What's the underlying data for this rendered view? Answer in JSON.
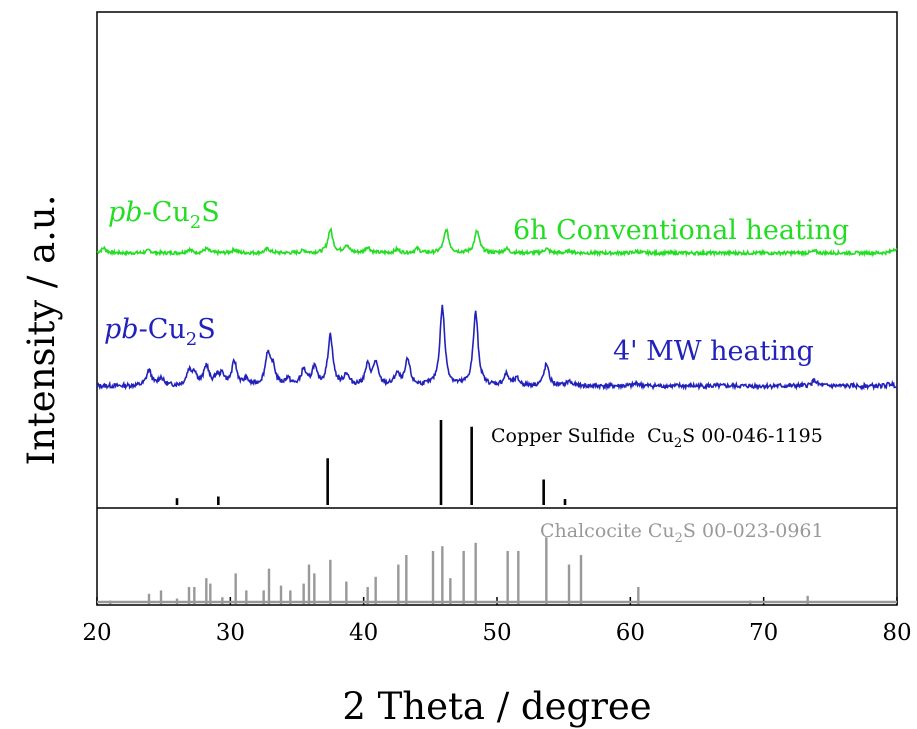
{
  "chart_data": {
    "type": "line",
    "xlabel": "2 Theta / degree",
    "ylabel": "Intensity / a.u.",
    "xlim": [
      20,
      80
    ],
    "xticks": [
      20,
      30,
      40,
      50,
      60,
      70,
      80
    ],
    "xtick_labels": [
      "20",
      "30",
      "40",
      "50",
      "60",
      "70",
      "80"
    ],
    "grid": false,
    "series": [
      {
        "name": "6h Conventional heating",
        "sample_prefix": "pb",
        "sample_formula": "-Cu",
        "sample_subscript": "2",
        "sample_suffix": "S",
        "color": "#22dd22",
        "baseline": 0.0,
        "peaks": [
          [
            20.5,
            0.12
          ],
          [
            23.9,
            0.06
          ],
          [
            26.9,
            0.08
          ],
          [
            28.2,
            0.1
          ],
          [
            30.3,
            0.08
          ],
          [
            32.8,
            0.1
          ],
          [
            35.5,
            0.06
          ],
          [
            37.5,
            0.55
          ],
          [
            38.7,
            0.18
          ],
          [
            40.3,
            0.14
          ],
          [
            42.5,
            0.08
          ],
          [
            44.0,
            0.1
          ],
          [
            46.2,
            0.55
          ],
          [
            48.5,
            0.52
          ],
          [
            50.7,
            0.1
          ],
          [
            53.7,
            0.1
          ],
          [
            55.5,
            0.05
          ],
          [
            60.5,
            0.04
          ],
          [
            73.8,
            0.04
          ],
          [
            79.8,
            0.1
          ]
        ]
      },
      {
        "name": "4' MW heating",
        "sample_prefix": "pb",
        "sample_formula": "-Cu",
        "sample_subscript": "2",
        "sample_suffix": "S",
        "color": "#2222bb",
        "baseline": 0.0,
        "peaks": [
          [
            23.9,
            0.28
          ],
          [
            24.8,
            0.14
          ],
          [
            26.9,
            0.25
          ],
          [
            27.3,
            0.22
          ],
          [
            28.2,
            0.35
          ],
          [
            29.0,
            0.15
          ],
          [
            29.4,
            0.18
          ],
          [
            30.3,
            0.42
          ],
          [
            31.2,
            0.1
          ],
          [
            32.8,
            0.55
          ],
          [
            33.2,
            0.3
          ],
          [
            34.3,
            0.12
          ],
          [
            35.5,
            0.28
          ],
          [
            36.3,
            0.32
          ],
          [
            37.5,
            0.9
          ],
          [
            38.7,
            0.2
          ],
          [
            40.3,
            0.35
          ],
          [
            40.9,
            0.4
          ],
          [
            42.5,
            0.2
          ],
          [
            43.3,
            0.45
          ],
          [
            45.9,
            1.4
          ],
          [
            48.4,
            1.3
          ],
          [
            50.7,
            0.2
          ],
          [
            51.5,
            0.12
          ],
          [
            53.7,
            0.38
          ],
          [
            55.4,
            0.08
          ],
          [
            60.5,
            0.05
          ],
          [
            73.8,
            0.1
          ],
          [
            79.5,
            0.04
          ]
        ]
      }
    ],
    "references": [
      {
        "label_name": "Copper Sulfide",
        "label_formula": "Cu",
        "label_subscript": "2",
        "label_suffix": "S 00-046-1195",
        "color": "#000000",
        "sticks": [
          [
            26.0,
            0.08
          ],
          [
            29.1,
            0.1
          ],
          [
            37.3,
            0.55
          ],
          [
            45.8,
            1.0
          ],
          [
            48.1,
            0.92
          ],
          [
            53.5,
            0.3
          ],
          [
            55.1,
            0.07
          ]
        ]
      },
      {
        "label_name": "Chalcocite",
        "label_formula": "Cu",
        "label_subscript": "2",
        "label_suffix": "S 00-023-0961",
        "color": "#999999",
        "sticks": [
          [
            21.0,
            0.05
          ],
          [
            23.9,
            0.15
          ],
          [
            24.8,
            0.2
          ],
          [
            26.0,
            0.08
          ],
          [
            26.9,
            0.25
          ],
          [
            27.3,
            0.25
          ],
          [
            28.2,
            0.38
          ],
          [
            28.5,
            0.3
          ],
          [
            29.4,
            0.1
          ],
          [
            30.4,
            0.45
          ],
          [
            31.2,
            0.2
          ],
          [
            32.5,
            0.2
          ],
          [
            32.9,
            0.52
          ],
          [
            33.8,
            0.27
          ],
          [
            34.5,
            0.2
          ],
          [
            35.5,
            0.3
          ],
          [
            35.9,
            0.58
          ],
          [
            36.3,
            0.45
          ],
          [
            37.5,
            0.65
          ],
          [
            38.7,
            0.33
          ],
          [
            40.3,
            0.25
          ],
          [
            40.9,
            0.4
          ],
          [
            42.6,
            0.58
          ],
          [
            43.2,
            0.72
          ],
          [
            45.2,
            0.78
          ],
          [
            45.9,
            0.85
          ],
          [
            46.5,
            0.38
          ],
          [
            47.5,
            0.78
          ],
          [
            48.4,
            0.9
          ],
          [
            50.8,
            0.78
          ],
          [
            51.6,
            0.78
          ],
          [
            53.7,
            0.98
          ],
          [
            55.4,
            0.58
          ],
          [
            56.3,
            0.72
          ],
          [
            60.6,
            0.25
          ],
          [
            69.0,
            0.05
          ],
          [
            73.3,
            0.12
          ]
        ]
      }
    ]
  }
}
